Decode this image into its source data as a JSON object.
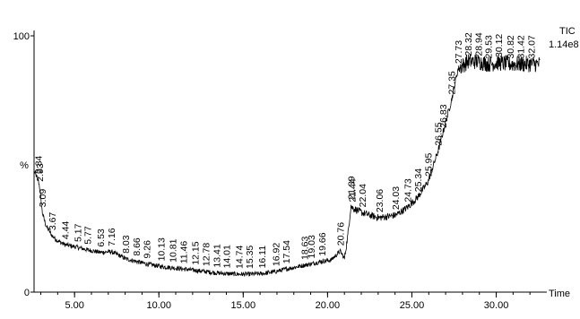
{
  "chart_data": {
    "type": "line",
    "title": "",
    "trace_label": "TIC",
    "intensity": "1.14e8",
    "ylabel": "%",
    "xlabel": "Time",
    "xlim": [
      2.6,
      33.0
    ],
    "ylim": [
      0,
      100
    ],
    "x_ticks": [
      5.0,
      10.0,
      15.0,
      20.0,
      25.0,
      30.0
    ],
    "x_tick_labels": [
      "5.00",
      "10.00",
      "15.00",
      "20.00",
      "25.00",
      "30.00"
    ],
    "y_ticks": [
      0,
      100
    ],
    "y_tick_labels": [
      "0",
      "100"
    ],
    "grid": false,
    "x": [
      2.6,
      2.84,
      2.93,
      3.09,
      3.3,
      3.67,
      4.0,
      4.44,
      5.17,
      5.77,
      6.53,
      7.16,
      7.6,
      8.03,
      8.66,
      9.26,
      10.13,
      10.81,
      11.46,
      12.15,
      12.78,
      13.41,
      14.01,
      14.74,
      15.35,
      16.11,
      16.92,
      17.54,
      18.63,
      19.03,
      19.66,
      20.2,
      20.76,
      21.0,
      21.2,
      21.39,
      21.44,
      22.04,
      22.5,
      23.06,
      24.03,
      24.73,
      25.34,
      25.95,
      26.55,
      26.83,
      27.35,
      27.73,
      28.32,
      28.94,
      29.53,
      30.12,
      30.82,
      31.42,
      32.07,
      32.6
    ],
    "y": [
      47,
      44,
      41,
      31,
      26,
      22,
      20,
      18.5,
      17.5,
      16.5,
      15.5,
      15.8,
      14.5,
      13,
      12,
      11,
      10,
      9.5,
      9,
      8.5,
      8,
      7.5,
      7.2,
      7,
      7,
      7.2,
      8,
      9,
      10.5,
      11,
      12,
      12.5,
      16,
      13,
      22,
      34,
      33,
      31,
      30,
      29,
      30,
      33,
      37,
      43,
      55,
      62,
      75,
      87,
      90,
      90,
      89,
      89.5,
      89,
      89,
      89,
      89
    ],
    "peak_labels": [
      {
        "x": 2.84,
        "y": 44,
        "label": "2.84"
      },
      {
        "x": 2.93,
        "y": 41,
        "label": "2.93"
      },
      {
        "x": 3.09,
        "y": 31,
        "label": "3.09"
      },
      {
        "x": 3.67,
        "y": 22,
        "label": "3.67"
      },
      {
        "x": 4.44,
        "y": 18.5,
        "label": "4.44"
      },
      {
        "x": 5.17,
        "y": 17.5,
        "label": "5.17"
      },
      {
        "x": 5.77,
        "y": 16.5,
        "label": "5.77"
      },
      {
        "x": 6.53,
        "y": 15.5,
        "label": "6.53"
      },
      {
        "x": 7.16,
        "y": 15.8,
        "label": "7.16"
      },
      {
        "x": 8.03,
        "y": 13,
        "label": "8.03"
      },
      {
        "x": 8.66,
        "y": 12,
        "label": "8.66"
      },
      {
        "x": 9.26,
        "y": 11,
        "label": "9.26"
      },
      {
        "x": 10.13,
        "y": 10,
        "label": "10.13"
      },
      {
        "x": 10.81,
        "y": 9.5,
        "label": "10.81"
      },
      {
        "x": 11.46,
        "y": 9,
        "label": "11.46"
      },
      {
        "x": 12.15,
        "y": 8.5,
        "label": "12.15"
      },
      {
        "x": 12.78,
        "y": 8,
        "label": "12.78"
      },
      {
        "x": 13.41,
        "y": 7.5,
        "label": "13.41"
      },
      {
        "x": 14.01,
        "y": 7.2,
        "label": "14.01"
      },
      {
        "x": 14.74,
        "y": 7,
        "label": "14.74"
      },
      {
        "x": 15.35,
        "y": 7,
        "label": "15.35"
      },
      {
        "x": 16.11,
        "y": 7.2,
        "label": "16.11"
      },
      {
        "x": 16.92,
        "y": 8,
        "label": "16.92"
      },
      {
        "x": 17.54,
        "y": 9,
        "label": "17.54"
      },
      {
        "x": 18.63,
        "y": 10.5,
        "label": "18.63"
      },
      {
        "x": 19.03,
        "y": 11,
        "label": "19.03"
      },
      {
        "x": 19.66,
        "y": 12,
        "label": "19.66"
      },
      {
        "x": 20.76,
        "y": 16,
        "label": "20.76"
      },
      {
        "x": 21.39,
        "y": 34,
        "label": "21.39"
      },
      {
        "x": 21.44,
        "y": 33,
        "label": "21.44"
      },
      {
        "x": 22.04,
        "y": 31,
        "label": "22.04"
      },
      {
        "x": 23.06,
        "y": 29,
        "label": "23.06"
      },
      {
        "x": 24.03,
        "y": 30,
        "label": "24.03"
      },
      {
        "x": 24.73,
        "y": 33,
        "label": "24.73"
      },
      {
        "x": 25.34,
        "y": 37,
        "label": "25.34"
      },
      {
        "x": 25.95,
        "y": 43,
        "label": "25.95"
      },
      {
        "x": 26.55,
        "y": 55,
        "label": "26.55"
      },
      {
        "x": 26.83,
        "y": 62,
        "label": "26.83"
      },
      {
        "x": 27.35,
        "y": 75,
        "label": "27.35"
      },
      {
        "x": 27.73,
        "y": 87,
        "label": "27.73"
      },
      {
        "x": 28.32,
        "y": 90,
        "label": "28.32"
      },
      {
        "x": 28.94,
        "y": 90,
        "label": "28.94"
      },
      {
        "x": 29.53,
        "y": 89,
        "label": "29.53"
      },
      {
        "x": 30.12,
        "y": 89.5,
        "label": "30.12"
      },
      {
        "x": 30.82,
        "y": 89,
        "label": "30.82"
      },
      {
        "x": 31.42,
        "y": 89,
        "label": "31.42"
      },
      {
        "x": 32.07,
        "y": 89,
        "label": "32.07"
      }
    ]
  }
}
